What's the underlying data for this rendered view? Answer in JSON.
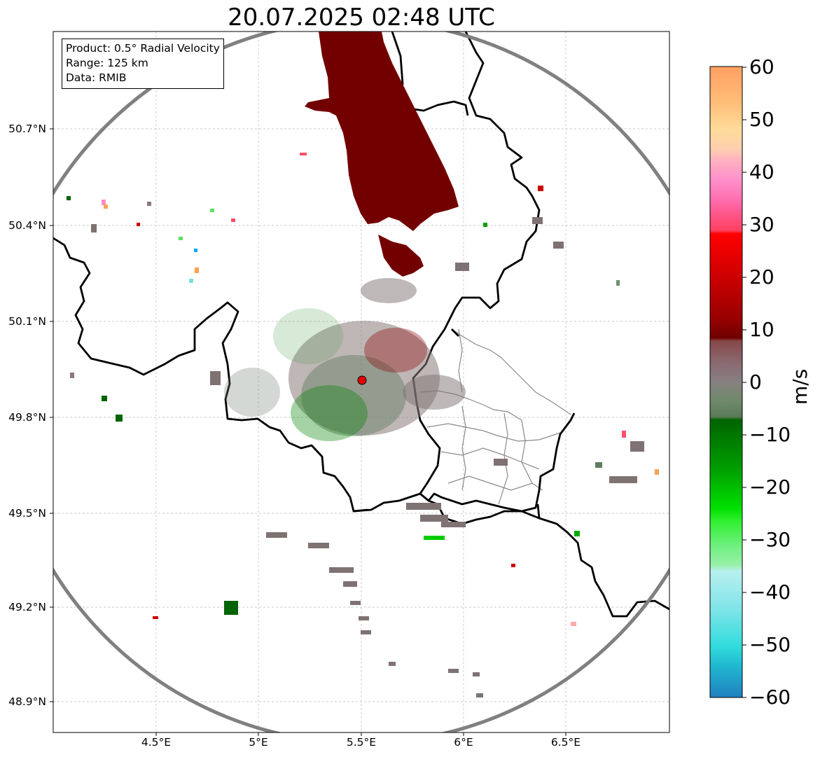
{
  "title": "20.07.2025 02:48 UTC",
  "info": {
    "product": "Product: 0.5° Radial Velocity",
    "range": "Range: 125 km",
    "data": "Data: RMIB"
  },
  "axes": {
    "lat_ticks": [
      "50.7°N",
      "50.4°N",
      "50.1°N",
      "49.8°N",
      "49.5°N",
      "49.2°N",
      "48.9°N"
    ],
    "lon_ticks": [
      "4.5°E",
      "5°E",
      "5.5°E",
      "6°E",
      "6.5°E"
    ],
    "grid": true
  },
  "colorbar": {
    "label": "m/s",
    "min": -60,
    "max": 60,
    "ticks": [
      "60",
      "50",
      "40",
      "30",
      "20",
      "10",
      "0",
      "−10",
      "−20",
      "−30",
      "−40",
      "−50",
      "−60"
    ]
  },
  "colors": {
    "range_ring": "#808080",
    "borders": "#000000",
    "radar_site": "#e60000"
  },
  "map": {
    "radar_site_lon": 5.5,
    "radar_site_lat": 49.91,
    "range_km": 125
  }
}
